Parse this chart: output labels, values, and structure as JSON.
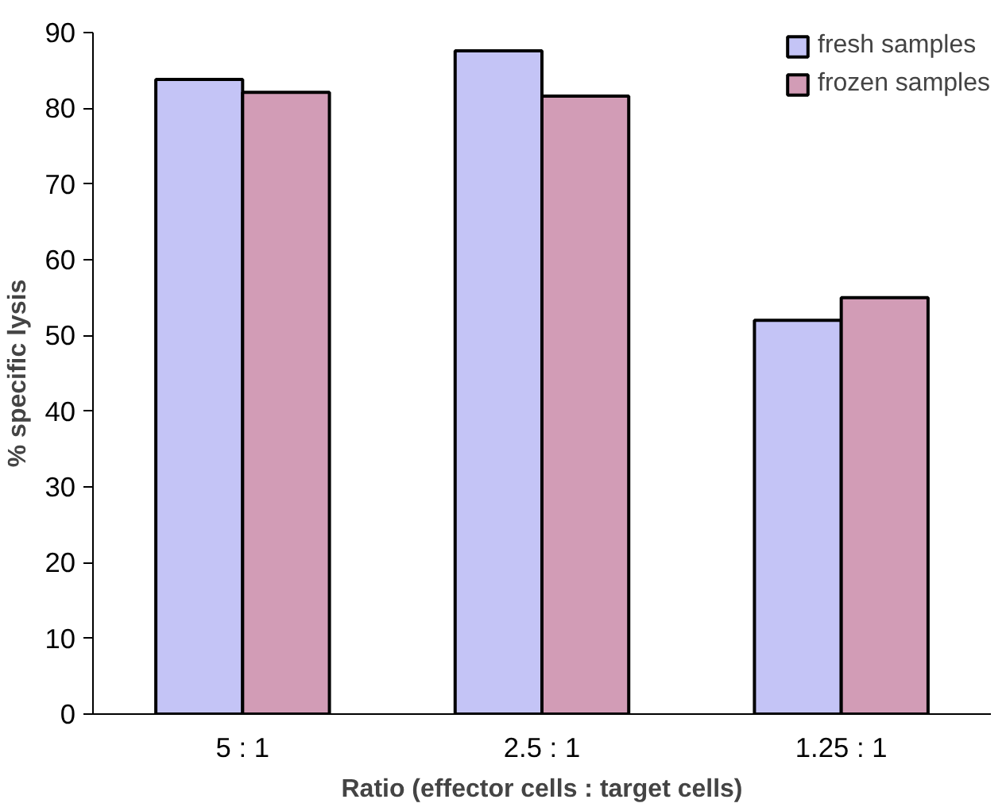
{
  "chart_data": {
    "type": "bar",
    "xlabel": "Ratio (effector cells : target cells)",
    "ylabel": "% specific lysis",
    "categories": [
      "5 : 1",
      "2.5 : 1",
      "1.25 : 1"
    ],
    "series": [
      {
        "name": "fresh samples",
        "color": "#c4c4f6",
        "values": [
          83.8,
          87.6,
          52.0
        ]
      },
      {
        "name": "frozen samples",
        "color": "#d29cb6",
        "values": [
          82.1,
          81.6,
          55.0
        ]
      }
    ],
    "ylim": [
      0,
      90
    ],
    "yticks": [
      0,
      10,
      20,
      30,
      40,
      50,
      60,
      70,
      80,
      90
    ],
    "grid": false,
    "legend": "top right"
  }
}
